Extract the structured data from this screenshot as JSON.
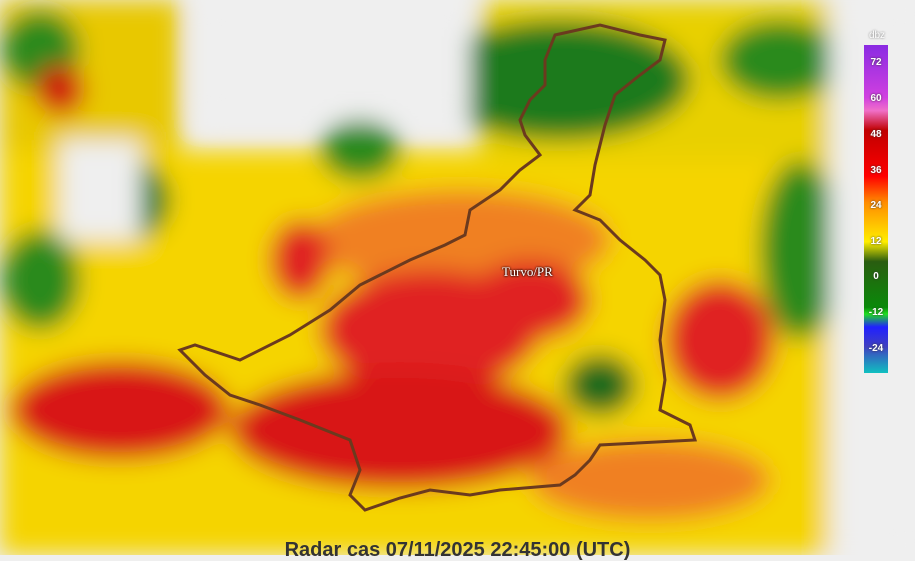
{
  "map": {
    "place_label": "Turvo/PR",
    "boundary_color": "#6b3a1e"
  },
  "legend": {
    "unit": "dbz",
    "ticks": [
      "72",
      "60",
      "48",
      "36",
      "24",
      "12",
      "0",
      "-12",
      "-24"
    ]
  },
  "footer": {
    "timestamp_text": "Radar cas 07/11/2025 22:45:00 (UTC)"
  }
}
